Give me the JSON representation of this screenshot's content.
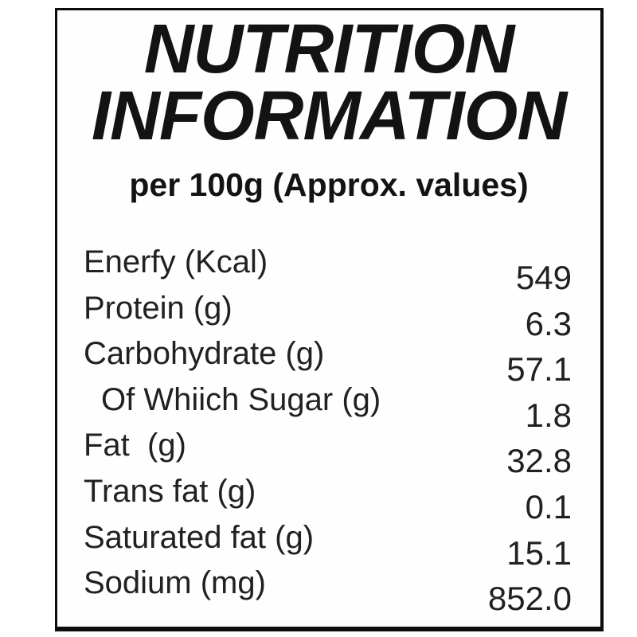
{
  "label": {
    "title_line1": "NUTRITION",
    "title_line2": "INFORMATION",
    "subtitle": "per 100g (Approx. values)",
    "rows": [
      {
        "name": "Enerfy (Kcal)",
        "value": "549"
      },
      {
        "name": "Protein (g)",
        "value": "6.3"
      },
      {
        "name": "Carbohydrate (g)",
        "value": "57.1"
      },
      {
        "name": "Of Whiich Sugar (g)",
        "value": "1.8"
      },
      {
        "name": "Fat  (g)",
        "value": "32.8"
      },
      {
        "name": "Trans fat (g)",
        "value": "0.1"
      },
      {
        "name": "Saturated fat (g)",
        "value": "15.1"
      },
      {
        "name": "Sodium (mg)",
        "value": "852.0"
      }
    ],
    "colors": {
      "text": "#212121",
      "title_text": "#131313",
      "border": "#0c0c0c",
      "background": "#ffffff"
    }
  }
}
